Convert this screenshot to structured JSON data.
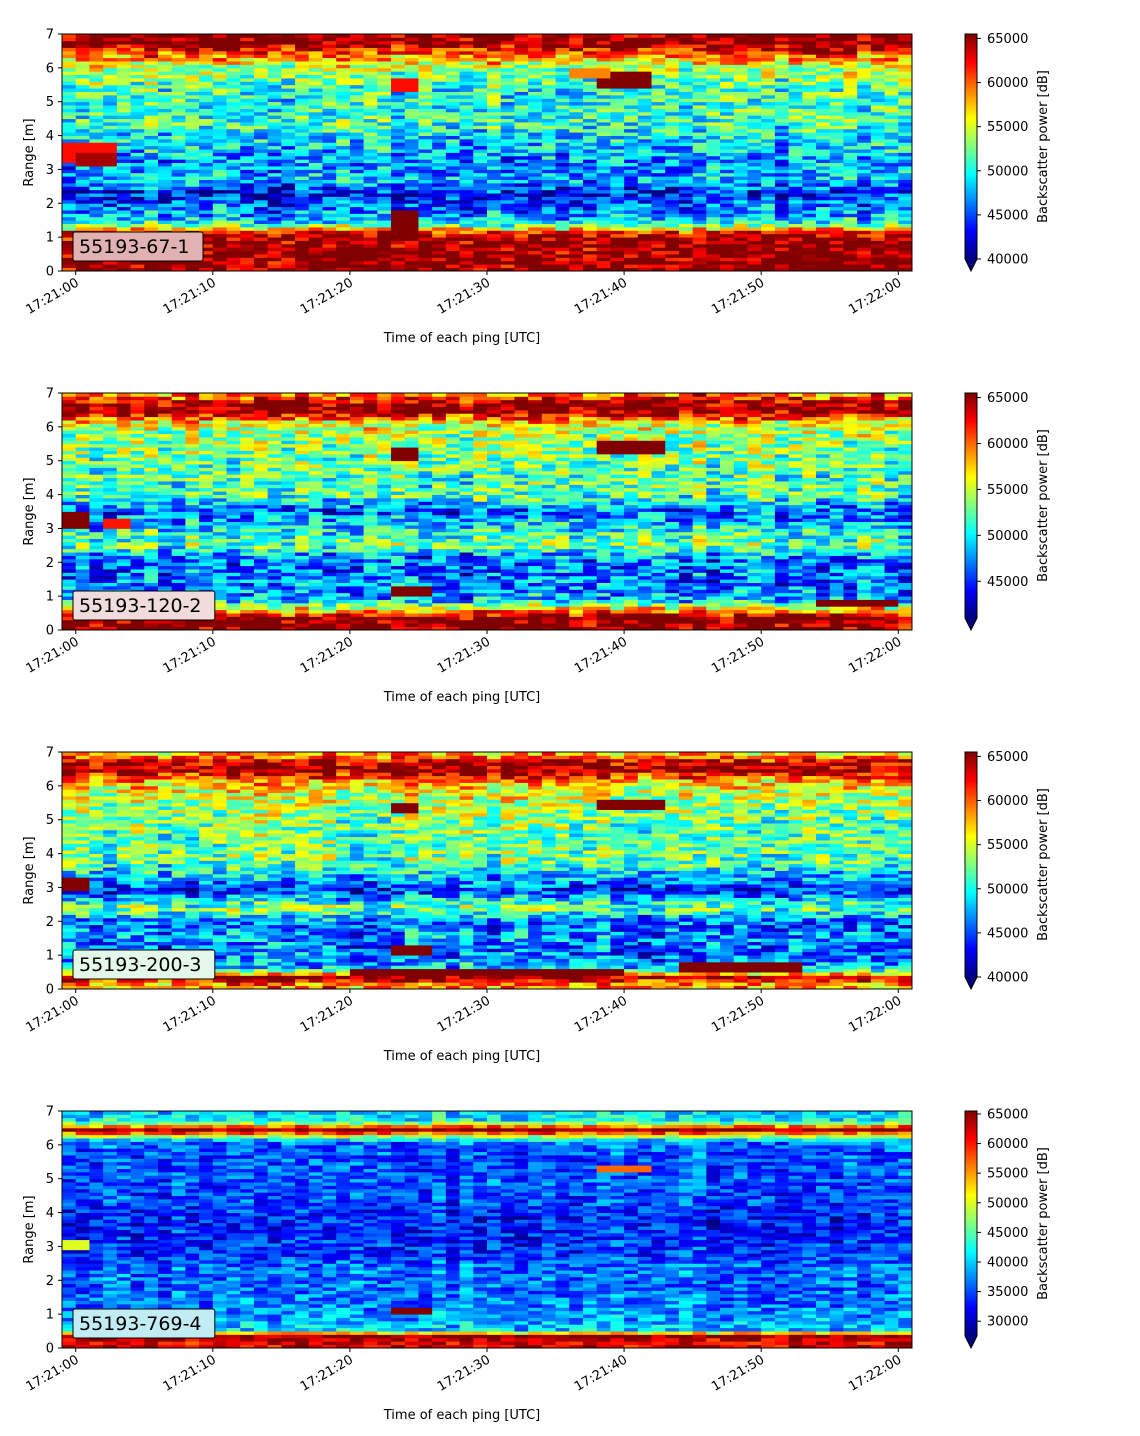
{
  "colormap": "jet",
  "colors": {
    "extend_under": "#00007f",
    "axis": "#000000",
    "label_box_edge": "#000000"
  },
  "chart_data": [
    {
      "type": "heatmap",
      "label": "55193-67-1",
      "label_box_color": "#e2b2b2",
      "xlabel": "Time of each ping [UTC]",
      "ylabel": "Range [m]",
      "x_ticklabels": [
        "17:21:00",
        "17:21:10",
        "17:21:20",
        "17:21:30",
        "17:21:40",
        "17:21:50",
        "17:22:00"
      ],
      "y_ticks": [
        0,
        1,
        2,
        3,
        4,
        5,
        6,
        7
      ],
      "ylim": [
        0,
        7
      ],
      "x_range_seconds": [
        -1,
        61
      ],
      "colorbar": {
        "label": "Backscatter power [dB]",
        "ticks": [
          40000,
          45000,
          50000,
          55000,
          60000,
          65000
        ],
        "range": [
          40000,
          65500
        ],
        "extend": "min"
      },
      "range_profile": [
        {
          "range": 0.15,
          "value": 65500
        },
        {
          "range": 0.35,
          "value": 65500
        },
        {
          "range": 0.6,
          "value": 65500
        },
        {
          "range": 0.9,
          "value": 65500
        },
        {
          "range": 1.15,
          "value": 62000
        },
        {
          "range": 1.4,
          "value": 50000
        },
        {
          "range": 1.7,
          "value": 47000
        },
        {
          "range": 2.0,
          "value": 46000
        },
        {
          "range": 2.3,
          "value": 43000
        },
        {
          "range": 2.7,
          "value": 48000
        },
        {
          "range": 3.2,
          "value": 47000
        },
        {
          "range": 3.7,
          "value": 48500
        },
        {
          "range": 4.5,
          "value": 51000
        },
        {
          "range": 5.3,
          "value": 50500
        },
        {
          "range": 6.0,
          "value": 54000
        },
        {
          "range": 6.35,
          "value": 59000
        },
        {
          "range": 6.7,
          "value": 65500
        },
        {
          "range": 6.95,
          "value": 65500
        }
      ],
      "features": [
        {
          "t0": -1,
          "t1": 3,
          "r0": 3.2,
          "r1": 3.8,
          "value": 62000
        },
        {
          "t0": 0,
          "t1": 3,
          "r0": 3.1,
          "r1": 3.5,
          "value": 64500
        },
        {
          "t0": 23.5,
          "t1": 24.5,
          "r0": 0.9,
          "r1": 1.8,
          "value": 65500
        },
        {
          "t0": 23.5,
          "t1": 24.5,
          "r0": 5.3,
          "r1": 5.7,
          "value": 62000
        },
        {
          "t0": 38,
          "t1": 42,
          "r0": 5.4,
          "r1": 5.9,
          "value": 65500
        },
        {
          "t0": 36,
          "t1": 39,
          "r0": 5.7,
          "r1": 6.0,
          "value": 59000
        }
      ]
    },
    {
      "type": "heatmap",
      "label": "55193-120-2",
      "label_box_color": "#f0dcdc",
      "xlabel": "Time of each ping [UTC]",
      "ylabel": "Range [m]",
      "x_ticklabels": [
        "17:21:00",
        "17:21:10",
        "17:21:20",
        "17:21:30",
        "17:21:40",
        "17:21:50",
        "17:22:00"
      ],
      "y_ticks": [
        0,
        1,
        2,
        3,
        4,
        5,
        6,
        7
      ],
      "ylim": [
        0,
        7
      ],
      "x_range_seconds": [
        -1,
        61
      ],
      "colorbar": {
        "label": "Backscatter power [dB]",
        "ticks": [
          45000,
          50000,
          55000,
          60000,
          65000
        ],
        "range": [
          41000,
          65500
        ],
        "extend": "min"
      },
      "range_profile": [
        {
          "range": 0.15,
          "value": 65500
        },
        {
          "range": 0.35,
          "value": 65500
        },
        {
          "range": 0.6,
          "value": 58000
        },
        {
          "range": 0.9,
          "value": 48000
        },
        {
          "range": 1.3,
          "value": 47000
        },
        {
          "range": 1.8,
          "value": 46500
        },
        {
          "range": 2.2,
          "value": 47000
        },
        {
          "range": 2.5,
          "value": 53000
        },
        {
          "range": 3.0,
          "value": 50000
        },
        {
          "range": 3.5,
          "value": 46000
        },
        {
          "range": 4.0,
          "value": 52000
        },
        {
          "range": 4.6,
          "value": 52000
        },
        {
          "range": 5.2,
          "value": 53000
        },
        {
          "range": 5.8,
          "value": 54000
        },
        {
          "range": 6.15,
          "value": 57000
        },
        {
          "range": 6.45,
          "value": 65500
        },
        {
          "range": 6.7,
          "value": 65500
        },
        {
          "range": 6.9,
          "value": 60000
        }
      ],
      "features": [
        {
          "t0": -1,
          "t1": 1,
          "r0": 3.0,
          "r1": 3.5,
          "value": 65500
        },
        {
          "t0": 2.5,
          "t1": 3.5,
          "r0": 3.0,
          "r1": 3.3,
          "value": 62000
        },
        {
          "t0": 23.5,
          "t1": 26,
          "r0": 1.0,
          "r1": 1.3,
          "value": 65500
        },
        {
          "t0": 23.5,
          "t1": 24.5,
          "r0": 5.0,
          "r1": 5.4,
          "value": 65500
        },
        {
          "t0": 38.5,
          "t1": 43,
          "r0": 5.2,
          "r1": 5.6,
          "value": 65500
        },
        {
          "t0": 54,
          "t1": 60,
          "r0": 0.7,
          "r1": 0.9,
          "value": 65500
        }
      ]
    },
    {
      "type": "heatmap",
      "label": "55193-200-3",
      "label_box_color": "#e4f8ea",
      "xlabel": "Time of each ping [UTC]",
      "ylabel": "Range [m]",
      "x_ticklabels": [
        "17:21:00",
        "17:21:10",
        "17:21:20",
        "17:21:30",
        "17:21:40",
        "17:21:50",
        "17:22:00"
      ],
      "y_ticks": [
        0,
        1,
        2,
        3,
        4,
        5,
        6,
        7
      ],
      "ylim": [
        0,
        7
      ],
      "x_range_seconds": [
        -1,
        61
      ],
      "colorbar": {
        "label": "Backscatter power [dB]",
        "ticks": [
          40000,
          45000,
          50000,
          55000,
          60000,
          65000
        ],
        "range": [
          40000,
          65500
        ],
        "extend": "min"
      },
      "range_profile": [
        {
          "range": 0.15,
          "value": 59000
        },
        {
          "range": 0.35,
          "value": 65500
        },
        {
          "range": 0.6,
          "value": 48000
        },
        {
          "range": 1.0,
          "value": 46000
        },
        {
          "range": 1.5,
          "value": 47000
        },
        {
          "range": 2.0,
          "value": 45500
        },
        {
          "range": 2.4,
          "value": 53000
        },
        {
          "range": 2.9,
          "value": 44000
        },
        {
          "range": 3.3,
          "value": 48000
        },
        {
          "range": 3.8,
          "value": 52000
        },
        {
          "range": 4.5,
          "value": 52000
        },
        {
          "range": 5.2,
          "value": 53000
        },
        {
          "range": 5.8,
          "value": 55000
        },
        {
          "range": 6.15,
          "value": 58000
        },
        {
          "range": 6.45,
          "value": 65500
        },
        {
          "range": 6.7,
          "value": 64000
        },
        {
          "range": 6.9,
          "value": 58000
        }
      ],
      "features": [
        {
          "t0": -1,
          "t1": 1,
          "r0": 2.9,
          "r1": 3.3,
          "value": 65500
        },
        {
          "t0": 23.5,
          "t1": 26,
          "r0": 1.0,
          "r1": 1.3,
          "value": 65500
        },
        {
          "t0": 23.5,
          "t1": 24.5,
          "r0": 5.2,
          "r1": 5.5,
          "value": 65500
        },
        {
          "t0": 38.5,
          "t1": 43,
          "r0": 5.3,
          "r1": 5.6,
          "value": 65500
        },
        {
          "t0": 20,
          "t1": 40,
          "r0": 0.4,
          "r1": 0.55,
          "value": 65500
        },
        {
          "t0": 44,
          "t1": 53,
          "r0": 0.5,
          "r1": 0.75,
          "value": 65500
        }
      ]
    },
    {
      "type": "heatmap",
      "label": "55193-769-4",
      "label_box_color": "#c2ecf4",
      "xlabel": "Time of each ping [UTC]",
      "ylabel": "Range [m]",
      "x_ticklabels": [
        "17:21:00",
        "17:21:10",
        "17:21:20",
        "17:21:30",
        "17:21:40",
        "17:21:50",
        "17:22:00"
      ],
      "y_ticks": [
        0,
        1,
        2,
        3,
        4,
        5,
        6,
        7
      ],
      "ylim": [
        0,
        7
      ],
      "x_range_seconds": [
        -1,
        61
      ],
      "colorbar": {
        "label": "Backscatter power [dB]",
        "ticks": [
          30000,
          35000,
          40000,
          45000,
          50000,
          55000,
          60000,
          65000
        ],
        "range": [
          27500,
          65500
        ],
        "extend": "min"
      },
      "range_profile": [
        {
          "range": 0.15,
          "value": 62000
        },
        {
          "range": 0.35,
          "value": 65500
        },
        {
          "range": 0.55,
          "value": 40000
        },
        {
          "range": 0.9,
          "value": 38000
        },
        {
          "range": 1.3,
          "value": 37000
        },
        {
          "range": 1.8,
          "value": 36000
        },
        {
          "range": 2.3,
          "value": 37000
        },
        {
          "range": 2.8,
          "value": 34000
        },
        {
          "range": 3.3,
          "value": 33500
        },
        {
          "range": 3.8,
          "value": 33000
        },
        {
          "range": 4.4,
          "value": 35000
        },
        {
          "range": 5.0,
          "value": 35500
        },
        {
          "range": 5.6,
          "value": 35000
        },
        {
          "range": 6.1,
          "value": 36500
        },
        {
          "range": 6.45,
          "value": 65500
        },
        {
          "range": 6.7,
          "value": 42000
        },
        {
          "range": 6.9,
          "value": 40000
        }
      ],
      "features": [
        {
          "t0": -1,
          "t1": 1,
          "r0": 2.9,
          "r1": 3.2,
          "value": 50000
        },
        {
          "t0": 23.5,
          "t1": 26,
          "r0": 1.0,
          "r1": 1.2,
          "value": 65500
        },
        {
          "t0": 38.5,
          "t1": 42,
          "r0": 5.2,
          "r1": 5.4,
          "value": 57000
        }
      ]
    }
  ]
}
